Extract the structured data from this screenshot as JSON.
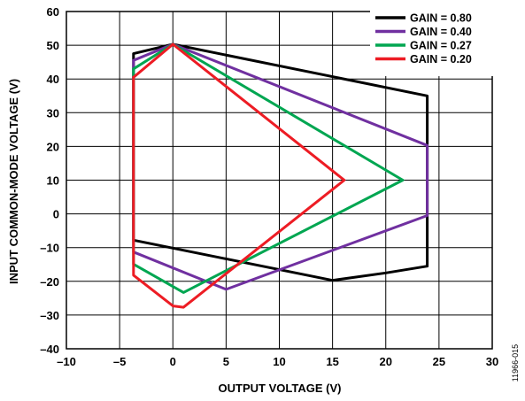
{
  "chart_data": {
    "type": "line",
    "xlabel": "OUTPUT VOLTAGE (V)",
    "ylabel": "INPUT COMMON-MODE VOLTAGE (V)",
    "xlim": [
      -10,
      30
    ],
    "ylim": [
      -40,
      60
    ],
    "xticks": [
      -10,
      -5,
      0,
      5,
      10,
      15,
      20,
      25,
      30
    ],
    "xtick_labels": [
      "–10",
      "–5",
      "0",
      "5",
      "10",
      "15",
      "20",
      "25",
      "30"
    ],
    "yticks": [
      -40,
      -30,
      -20,
      -10,
      0,
      10,
      20,
      30,
      40,
      50,
      60
    ],
    "ytick_labels": [
      "–40",
      "–30",
      "–20",
      "–10",
      "0",
      "10",
      "20",
      "30",
      "40",
      "50",
      "60"
    ],
    "grid": true,
    "legend_position": "top-right",
    "figure_id": "11966-015",
    "series": [
      {
        "name": "GAIN = 0.80",
        "color": "#000000",
        "points": [
          [
            -3.7,
            47.5
          ],
          [
            0,
            50.3
          ],
          [
            23.9,
            35
          ],
          [
            23.9,
            -15.5
          ],
          [
            20,
            -17.5
          ],
          [
            15,
            -19.7
          ],
          [
            -3.7,
            -7.8
          ],
          [
            -3.7,
            47.5
          ]
        ]
      },
      {
        "name": "GAIN = 0.40",
        "color": "#7030A0",
        "points": [
          [
            -3.7,
            45.5
          ],
          [
            0,
            50.3
          ],
          [
            23.9,
            20.3
          ],
          [
            23.9,
            -0.5
          ],
          [
            5,
            -22.4
          ],
          [
            -3.7,
            -11.3
          ],
          [
            -3.7,
            45.5
          ]
        ]
      },
      {
        "name": "GAIN = 0.27",
        "color": "#00A651",
        "points": [
          [
            -3.7,
            43
          ],
          [
            0,
            50.3
          ],
          [
            21.6,
            10
          ],
          [
            1,
            -23.3
          ],
          [
            -3.7,
            -14.9
          ],
          [
            -3.7,
            43
          ]
        ]
      },
      {
        "name": "GAIN = 0.20",
        "color": "#ED1C24",
        "points": [
          [
            -3.7,
            40.5
          ],
          [
            0,
            50.3
          ],
          [
            16.1,
            10
          ],
          [
            1,
            -27.7
          ],
          [
            0,
            -27.3
          ],
          [
            -3.7,
            -18.2
          ],
          [
            -3.7,
            40.5
          ]
        ]
      }
    ]
  }
}
